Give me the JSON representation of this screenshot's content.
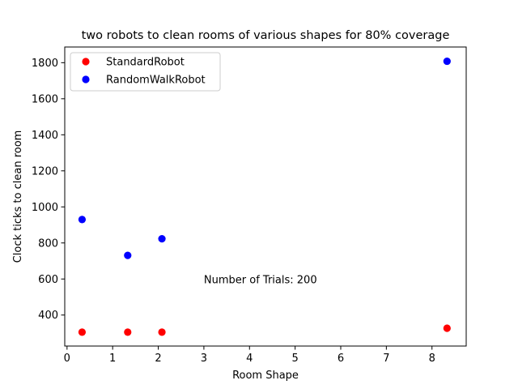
{
  "chart_data": {
    "type": "scatter",
    "title": "two robots to clean rooms of various shapes for 80% coverage",
    "xlabel": "Room Shape",
    "ylabel": "Clock ticks to clean room",
    "xlim": [
      -0.05,
      8.75
    ],
    "ylim": [
      228,
      1887
    ],
    "xticks": [
      0,
      1,
      2,
      3,
      4,
      5,
      6,
      7,
      8
    ],
    "yticks": [
      400,
      600,
      800,
      1000,
      1200,
      1400,
      1600,
      1800
    ],
    "grid": false,
    "legend_position": "upper-left",
    "annotation": {
      "text": "Number of Trials: 200",
      "x": 3.0,
      "y": 600
    },
    "series": [
      {
        "name": "StandardRobot",
        "color": "#ff0000",
        "x": [
          0.33,
          1.33,
          2.08,
          8.33
        ],
        "y": [
          305,
          305,
          305,
          327
        ]
      },
      {
        "name": "RandomWalkRobot",
        "color": "#0000ff",
        "x": [
          0.33,
          1.33,
          2.08,
          8.33
        ],
        "y": [
          930,
          731,
          823,
          1808
        ]
      }
    ]
  }
}
